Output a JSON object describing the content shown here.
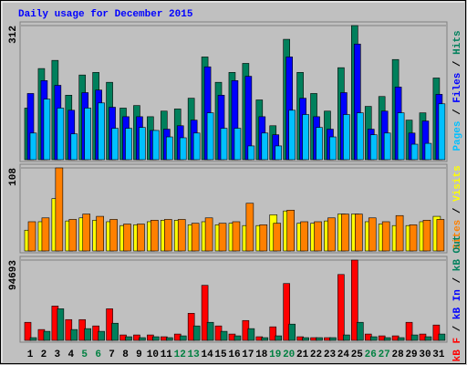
{
  "title": "Daily usage for December 2015",
  "chart_data": [
    {
      "type": "bar",
      "ylim": [
        0,
        312
      ],
      "yticks": [
        312
      ],
      "grid": true,
      "legend_separator": "/",
      "legend_reversed": true,
      "series": [
        {
          "name": "Hits",
          "color": "#00805c",
          "values": [
            120,
            212,
            231,
            150,
            197,
            203,
            180,
            120,
            126,
            100,
            113,
            118,
            143,
            239,
            180,
            203,
            224,
            139,
            79,
            280,
            203,
            154,
            113,
            214,
            312,
            124,
            147,
            233,
            92,
            109,
            190
          ]
        },
        {
          "name": "Files",
          "color": "#0000ff",
          "values": [
            154,
            184,
            173,
            115,
            156,
            162,
            122,
            100,
            100,
            68,
            71,
            79,
            92,
            216,
            150,
            184,
            194,
            100,
            58,
            239,
            143,
            100,
            71,
            156,
            269,
            71,
            113,
            169,
            62,
            90,
            152
          ]
        },
        {
          "name": "Pages",
          "color": "#00c0ff",
          "values": [
            62,
            141,
            120,
            60,
            120,
            132,
            73,
            73,
            75,
            68,
            53,
            51,
            62,
            109,
            73,
            73,
            32,
            62,
            32,
            115,
            105,
            75,
            53,
            105,
            109,
            58,
            62,
            109,
            36,
            38,
            130
          ]
        }
      ]
    },
    {
      "type": "bar",
      "ylim": [
        0,
        108
      ],
      "yticks": [
        108
      ],
      "grid": true,
      "legend_separator": "/",
      "legend_reversed": true,
      "series": [
        {
          "name": "Visits",
          "color": "#ffff00",
          "values": [
            27,
            38,
            68,
            39,
            43,
            40,
            38,
            33,
            34,
            38,
            40,
            40,
            34,
            38,
            34,
            36,
            33,
            33,
            47,
            52,
            36,
            36,
            39,
            48,
            48,
            38,
            35,
            33,
            33,
            38,
            45
          ]
        },
        {
          "name": "Sites",
          "color": "#ff8000",
          "values": [
            38,
            43,
            108,
            41,
            48,
            45,
            41,
            35,
            35,
            40,
            41,
            41,
            36,
            43,
            36,
            38,
            62,
            34,
            36,
            53,
            38,
            38,
            43,
            48,
            48,
            43,
            38,
            46,
            34,
            40,
            41
          ]
        }
      ]
    },
    {
      "type": "bar",
      "ylim": [
        0,
        94693
      ],
      "yticks": [
        94693
      ],
      "grid": true,
      "legend_separator": "/",
      "legend_reversed": false,
      "categories": [
        "1",
        "2",
        "3",
        "4",
        "5",
        "6",
        "7",
        "8",
        "9",
        "10",
        "11",
        "12",
        "13",
        "14",
        "15",
        "16",
        "17",
        "18",
        "19",
        "20",
        "21",
        "22",
        "23",
        "24",
        "25",
        "26",
        "27",
        "28",
        "29",
        "30",
        "31"
      ],
      "category_colors": [
        "#000",
        "#000",
        "#000",
        "#000",
        "#008040",
        "#008040",
        "#000",
        "#000",
        "#000",
        "#000",
        "#000",
        "#008040",
        "#008040",
        "#000",
        "#000",
        "#000",
        "#000",
        "#000",
        "#008040",
        "#008040",
        "#000",
        "#000",
        "#000",
        "#000",
        "#000",
        "#008040",
        "#008040",
        "#000",
        "#000",
        "#000",
        "#000"
      ],
      "series": [
        {
          "name": "kB F",
          "color": "#ff0000",
          "values": [
            21280,
            12768,
            40432,
            24472,
            24472,
            17024,
            37240,
            6384,
            6384,
            6384,
            4256,
            7448,
            31920,
            64904,
            17024,
            7448,
            23408,
            4256,
            15960,
            67032,
            4256,
            3192,
            3192,
            77672,
            94693,
            7448,
            5320,
            5320,
            21280,
            7448,
            18088
          ]
        },
        {
          "name": "kB In",
          "color": "#0000ff",
          "values": [
            null,
            null,
            null,
            null,
            null,
            null,
            null,
            null,
            null,
            null,
            null,
            null,
            null,
            null,
            null,
            null,
            null,
            null,
            null,
            null,
            null,
            null,
            null,
            null,
            null,
            null,
            null,
            null,
            null,
            null,
            null
          ]
        },
        {
          "name": "kB Out",
          "color": "#00805c",
          "values": [
            3192,
            10640,
            37240,
            12768,
            13832,
            10640,
            20216,
            4256,
            3192,
            4256,
            3192,
            5320,
            17024,
            21280,
            10640,
            5320,
            13832,
            3192,
            5320,
            19152,
            3192,
            3192,
            3192,
            6384,
            21280,
            4256,
            3192,
            3192,
            6384,
            4256,
            7448
          ]
        }
      ]
    }
  ]
}
